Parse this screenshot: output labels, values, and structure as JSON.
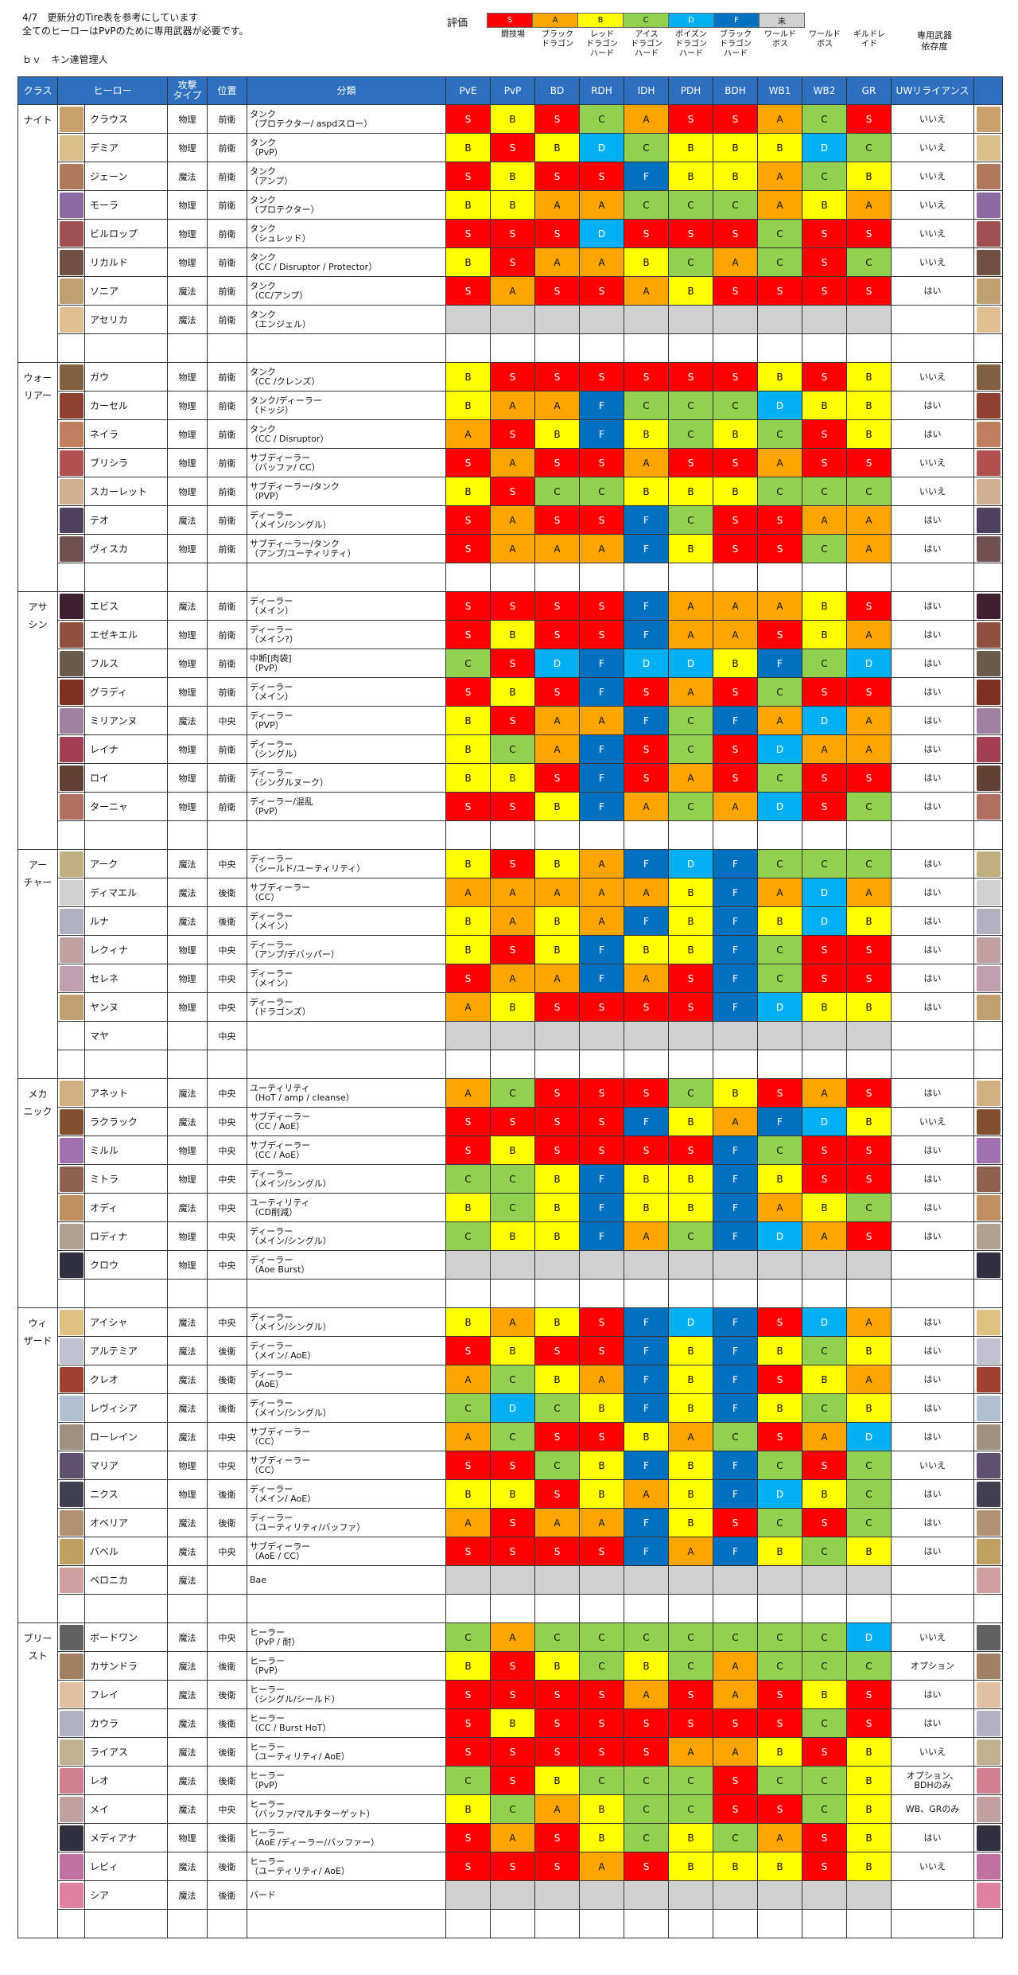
{
  "notes": [
    "4/7　更新分のTire表を参考にしています",
    "全てのヒーローはPvPのために専用武器が必要です。"
  ],
  "author": "ｂｖ　キン達管理人",
  "legend": {
    "label": "評価",
    "items": [
      {
        "text": "S",
        "color": "#ff0000"
      },
      {
        "text": "A",
        "color": "#ffa500"
      },
      {
        "text": "B",
        "color": "#ffff00"
      },
      {
        "text": "C",
        "color": "#92d050"
      },
      {
        "text": "D",
        "color": "#00b0f0"
      },
      {
        "text": "F",
        "color": "#0070c0"
      },
      {
        "text": "未",
        "color": "#d0d0d0"
      }
    ]
  },
  "column_names": [
    "闘技場",
    "ブラック\nドラゴン",
    "レッド\nドラゴン\nハード",
    "アイス\nドラゴン\nハード",
    "ポイズン\nドラゴン\nハード",
    "ブラック\nドラゴン\nハード",
    "ワールド\nボス",
    "ワールド\nボス",
    "ギルドレ\nイド"
  ],
  "weapon_header": "専用武器\n依存度",
  "table_headers": [
    "クラス",
    "ヒーロー",
    "攻撃\nタイプ",
    "位置",
    "分類",
    "PvE",
    "PvP",
    "BD",
    "RDH",
    "IDH",
    "PDH",
    "BDH",
    "WB1",
    "WB2",
    "GR",
    "UWリライアンス"
  ],
  "groups": [
    {
      "cls": "ナイト",
      "heroes": [
        {
          "n": "クラウス",
          "t": "物理",
          "p": "前衛",
          "c": "タンク\n（プロテクター/ aspdスロー）",
          "r": "SBSCASSACS",
          "d": "いいえ",
          "a": "#c9a06a"
        },
        {
          "n": "デミア",
          "t": "物理",
          "p": "前衛",
          "c": "タンク\n（PvP）",
          "r": "BSBDCBBBDC",
          "d": "いいえ",
          "a": "#d9c08a"
        },
        {
          "n": "ジェーン",
          "t": "魔法",
          "p": "前衛",
          "c": "タンク\n（アンプ）",
          "r": "SBSSFBBACB",
          "d": "いいえ",
          "a": "#b07a5a"
        },
        {
          "n": "モーラ",
          "t": "物理",
          "p": "前衛",
          "c": "タンク\n（プロテクター）",
          "r": "BBAACCCABA",
          "d": "いいえ",
          "a": "#8a6aa0"
        },
        {
          "n": "ビルロップ",
          "t": "物理",
          "p": "前衛",
          "c": "タンク\n（シュレッド）",
          "r": "SSSDSSSCSS",
          "d": "いいえ",
          "a": "#a05050"
        },
        {
          "n": "リカルド",
          "t": "物理",
          "p": "前衛",
          "c": "タンク\n（CC / Disruptor / Protector）",
          "r": "BSAABCACSC",
          "d": "いいえ",
          "a": "#705040"
        },
        {
          "n": "ソニア",
          "t": "魔法",
          "p": "前衛",
          "c": "タンク\n（CC/アンプ）",
          "r": "SASSABSSSS",
          "d": "はい",
          "a": "#c0a070"
        },
        {
          "n": "アセリカ",
          "t": "魔法",
          "p": "前衛",
          "c": "タンク\n（エンジェル）",
          "r": "UUUUUUUUUU",
          "d": "",
          "a": "#e0c090"
        },
        {
          "n": "",
          "t": "",
          "p": "",
          "c": "",
          "r": "",
          "d": "",
          "a": ""
        }
      ]
    },
    {
      "cls": "ウォー\nリアー",
      "heroes": [
        {
          "n": "ガウ",
          "t": "物理",
          "p": "前衛",
          "c": "タンク\n（CC /クレンズ）",
          "r": "BSSSSSSBSB",
          "d": "いいえ",
          "a": "#806040"
        },
        {
          "n": "カーセル",
          "t": "物理",
          "p": "前衛",
          "c": "タンク/ディーラー\n（ドッジ）",
          "r": "BAAFCCCDBB",
          "d": "はい",
          "a": "#904030"
        },
        {
          "n": "ネイラ",
          "t": "物理",
          "p": "前衛",
          "c": "タンク\n（CC / Disruptor）",
          "r": "ASBFBCBCSB",
          "d": "はい",
          "a": "#c08060"
        },
        {
          "n": "ブリシラ",
          "t": "物理",
          "p": "前衛",
          "c": "サブディーラー\n（バッファ/ CC）",
          "r": "SASSASSASS",
          "d": "いいえ",
          "a": "#b05050"
        },
        {
          "n": "スカーレット",
          "t": "物理",
          "p": "前衛",
          "c": "サブディーラー/タンク\n（PVP）",
          "r": "BSCCBBBCCC",
          "d": "いいえ",
          "a": "#d0b090"
        },
        {
          "n": "テオ",
          "t": "魔法",
          "p": "前衛",
          "c": "ディーラー\n（メイン/シングル）",
          "r": "SASSFCSSAA",
          "d": "はい",
          "a": "#504060"
        },
        {
          "n": "ヴィスカ",
          "t": "物理",
          "p": "前衛",
          "c": "サブディーラー/タンク\n（アンプ/ユーティリティ）",
          "r": "SAAAFBSSCA",
          "d": "はい",
          "a": "#705050"
        },
        {
          "n": "",
          "t": "",
          "p": "",
          "c": "",
          "r": "",
          "d": "",
          "a": ""
        }
      ]
    },
    {
      "cls": "アサ\nシン",
      "heroes": [
        {
          "n": "エビス",
          "t": "魔法",
          "p": "前衛",
          "c": "ディーラー\n（メイン）",
          "r": "SSSSFAAABS",
          "d": "はい",
          "a": "#402030"
        },
        {
          "n": "エゼキエル",
          "t": "物理",
          "p": "前衛",
          "c": "ディーラー\n（メイン?）",
          "r": "SBSSFAASBA",
          "d": "はい",
          "a": "#905040"
        },
        {
          "n": "フルス",
          "t": "物理",
          "p": "前衛",
          "c": "中断[肉袋]\n（PvP）",
          "r": "CSDFDDBFCD",
          "d": "はい",
          "a": "#6a5a4a"
        },
        {
          "n": "グラディ",
          "t": "物理",
          "p": "前衛",
          "c": "ディーラー\n（メイン）",
          "r": "SBSFSASCSS",
          "d": "はい",
          "a": "#803020"
        },
        {
          "n": "ミリアンヌ",
          "t": "魔法",
          "p": "中央",
          "c": "ディーラー\n（PVP）",
          "r": "BSAAFCFADA",
          "d": "はい",
          "a": "#a080a0"
        },
        {
          "n": "レイナ",
          "t": "物理",
          "p": "前衛",
          "c": "ディーラー\n（シングル）",
          "r": "BCAFSCSDAA",
          "d": "はい",
          "a": "#a04050"
        },
        {
          "n": "ロイ",
          "t": "物理",
          "p": "前衛",
          "c": "ディーラー\n（シングルヌーク）",
          "r": "BBSFSASCSS",
          "d": "はい",
          "a": "#604030"
        },
        {
          "n": "ターニャ",
          "t": "物理",
          "p": "前衛",
          "c": "ディーラー/混乱\n（PvP）",
          "r": "SSBFACADSC",
          "d": "はい",
          "a": "#b07060"
        },
        {
          "n": "",
          "t": "",
          "p": "",
          "c": "",
          "r": "",
          "d": "",
          "a": ""
        }
      ]
    },
    {
      "cls": "アー\nチャー",
      "heroes": [
        {
          "n": "アーク",
          "t": "魔法",
          "p": "中央",
          "c": "ディーラー\n（シールド/ユーティリティ）",
          "r": "BSBAFDFCCC",
          "d": "はい",
          "a": "#c0b080"
        },
        {
          "n": "ディマエル",
          "t": "魔法",
          "p": "後衛",
          "c": "サブディーラー\n（CC）",
          "r": "AAAAABFADA",
          "d": "はい",
          "a": "#d0d0d0"
        },
        {
          "n": "ルナ",
          "t": "魔法",
          "p": "後衛",
          "c": "ディーラー\n（メイン）",
          "r": "BABAFBFBDB",
          "d": "はい",
          "a": "#b0b0c0"
        },
        {
          "n": "レクィナ",
          "t": "物理",
          "p": "中央",
          "c": "ディーラー\n（アンプ/デバッパー）",
          "r": "BSBFBBFCSS",
          "d": "はい",
          "a": "#c0a0a0"
        },
        {
          "n": "セレネ",
          "t": "物理",
          "p": "中央",
          "c": "ディーラー\n（メイン）",
          "r": "SAAFASFCSS",
          "d": "はい",
          "a": "#c0a0b0"
        },
        {
          "n": "ヤンヌ",
          "t": "物理",
          "p": "中央",
          "c": "ディーラー\n（ドラゴンズ）",
          "r": "ABSSSSFDBB",
          "d": "はい",
          "a": "#c0a070"
        },
        {
          "n": "マヤ",
          "t": "",
          "p": "中央",
          "c": "",
          "r": "UUUUUUUUUU",
          "d": "",
          "a": ""
        },
        {
          "n": "",
          "t": "",
          "p": "",
          "c": "",
          "r": "",
          "d": "",
          "a": ""
        }
      ]
    },
    {
      "cls": "メカ\nニック",
      "heroes": [
        {
          "n": "アネット",
          "t": "魔法",
          "p": "中央",
          "c": "ユーティリティ\n（HoT / amp / cleanse）",
          "r": "ACSSSCBSAS",
          "d": "はい",
          "a": "#d0b080"
        },
        {
          "n": "ラクラック",
          "t": "魔法",
          "p": "中央",
          "c": "サブディーラー\n（CC / AoE）",
          "r": "SSSSFBAFDB",
          "d": "いいえ",
          "a": "#805030"
        },
        {
          "n": "ミルル",
          "t": "物理",
          "p": "中央",
          "c": "サブディーラー\n（CC / AoE）",
          "r": "SBSSSSFCSS",
          "d": "はい",
          "a": "#a070b0"
        },
        {
          "n": "ミトラ",
          "t": "物理",
          "p": "中央",
          "c": "ディーラー\n（メイン/シングル）",
          "r": "CCBFBBFBSS",
          "d": "はい",
          "a": "#906050"
        },
        {
          "n": "オディ",
          "t": "魔法",
          "p": "中央",
          "c": "ユーティリティ\n（CD削減）",
          "r": "BCBFBBFABC",
          "d": "はい",
          "a": "#c09060"
        },
        {
          "n": "ロディナ",
          "t": "物理",
          "p": "中央",
          "c": "ディーラー\n（メイン/シングル）",
          "r": "CBBFACFDAS",
          "d": "はい",
          "a": "#b0a090"
        },
        {
          "n": "クロウ",
          "t": "物理",
          "p": "中央",
          "c": "ディーラー\n（Aoe Burst）",
          "r": "UUUUUUUUUU",
          "d": "",
          "a": "#303040"
        },
        {
          "n": "",
          "t": "",
          "p": "",
          "c": "",
          "r": "",
          "d": "",
          "a": ""
        }
      ]
    },
    {
      "cls": "ウィ\nザード",
      "heroes": [
        {
          "n": "アイシャ",
          "t": "魔法",
          "p": "中央",
          "c": "ディーラー\n（メイン/シングル）",
          "r": "BABSFDFSDA",
          "d": "はい",
          "a": "#e0c080"
        },
        {
          "n": "アルテミア",
          "t": "魔法",
          "p": "後衛",
          "c": "ディーラー\n（メイン/ AoE）",
          "r": "SBSSFBFBCB",
          "d": "はい",
          "a": "#c0c0d0"
        },
        {
          "n": "クレオ",
          "t": "魔法",
          "p": "後衛",
          "c": "ディーラー\n（AoE）",
          "r": "ACBAFBFSBA",
          "d": "はい",
          "a": "#a04030"
        },
        {
          "n": "レヴィシア",
          "t": "魔法",
          "p": "後衛",
          "c": "ディーラー\n（メイン/シングル）",
          "r": "CDCBFBFBCB",
          "d": "はい",
          "a": "#b0c0d0"
        },
        {
          "n": "ローレイン",
          "t": "魔法",
          "p": "中央",
          "c": "サブディーラー\n（CC）",
          "r": "ACSSBACSAD",
          "d": "はい",
          "a": "#a09080"
        },
        {
          "n": "マリア",
          "t": "物理",
          "p": "中央",
          "c": "サブディーラー\n（CC）",
          "r": "SSCBFBFCSC",
          "d": "いいえ",
          "a": "#605070"
        },
        {
          "n": "ニクス",
          "t": "物理",
          "p": "後衛",
          "c": "ディーラー\n（メイン/ AoE）",
          "r": "BBSBABFDBC",
          "d": "はい",
          "a": "#404050"
        },
        {
          "n": "オベリア",
          "t": "魔法",
          "p": "後衛",
          "c": "ディーラー\n（ユーティリティ/バッファ）",
          "r": "ASAAFBSCSC",
          "d": "はい",
          "a": "#b09070"
        },
        {
          "n": "バベル",
          "t": "魔法",
          "p": "中央",
          "c": "サブディーラー\n（AoE / CC）",
          "r": "SSSSFAFBCB",
          "d": "はい",
          "a": "#c0a060"
        },
        {
          "n": "ベロニカ",
          "t": "魔法",
          "p": "",
          "c": "Bae",
          "r": "UUUUUUUUUU",
          "d": "",
          "a": "#d0a0a0"
        },
        {
          "n": "",
          "t": "",
          "p": "",
          "c": "",
          "r": "",
          "d": "",
          "a": ""
        }
      ]
    },
    {
      "cls": "ブリー\nスト",
      "heroes": [
        {
          "n": "ボードワン",
          "t": "魔法",
          "p": "中央",
          "c": "ヒーラー\n（PvP / 耐）",
          "r": "CACCCCCCCD",
          "d": "いいえ",
          "a": "#606060"
        },
        {
          "n": "カサンドラ",
          "t": "魔法",
          "p": "後衛",
          "c": "ヒーラー\n（PvP）",
          "r": "BSBCBCACCC",
          "d": "オプション",
          "a": "#a08060"
        },
        {
          "n": "フレイ",
          "t": "魔法",
          "p": "後衛",
          "c": "ヒーラー\n（シングル/シールド）",
          "r": "SSSSASASBS",
          "d": "はい",
          "a": "#e0c0a0"
        },
        {
          "n": "カウラ",
          "t": "魔法",
          "p": "後衛",
          "c": "ヒーラー\n（CC / Burst HoT）",
          "r": "SBSSSSSSCS",
          "d": "はい",
          "a": "#b0b0c0"
        },
        {
          "n": "ライアス",
          "t": "魔法",
          "p": "後衛",
          "c": "ヒーラー\n（ユーティリティ/ AoE）",
          "r": "SSSSSAABSB",
          "d": "いいえ",
          "a": "#c0b090"
        },
        {
          "n": "レオ",
          "t": "魔法",
          "p": "後衛",
          "c": "ヒーラー\n（PvP）",
          "r": "CSBCCCSCCB",
          "d": "オプション、\nBDHのみ",
          "a": "#d08090"
        },
        {
          "n": "メイ",
          "t": "魔法",
          "p": "中央",
          "c": "ヒーラー\n（バッファ/マルチターゲット）",
          "r": "BCABCCSSCB",
          "d": "WB、GRのみ",
          "a": "#c0a0a0"
        },
        {
          "n": "メディアナ",
          "t": "物理",
          "p": "後衛",
          "c": "ヒーラー\n（AoE /ディーラー/バッファー）",
          "r": "SASBCBCASB",
          "d": "はい",
          "a": "#303040"
        },
        {
          "n": "レビィ",
          "t": "魔法",
          "p": "後衛",
          "c": "ヒーラー\n（ユーティリティ/ AoE）",
          "r": "SSSASBBBSB",
          "d": "いいえ",
          "a": "#c070a0"
        },
        {
          "n": "シア",
          "t": "魔法",
          "p": "後衛",
          "c": "バード",
          "r": "UUUUUUUUUU",
          "d": "",
          "a": "#e080a0"
        },
        {
          "n": "",
          "t": "",
          "p": "",
          "c": "",
          "r": "",
          "d": "",
          "a": ""
        }
      ]
    }
  ]
}
